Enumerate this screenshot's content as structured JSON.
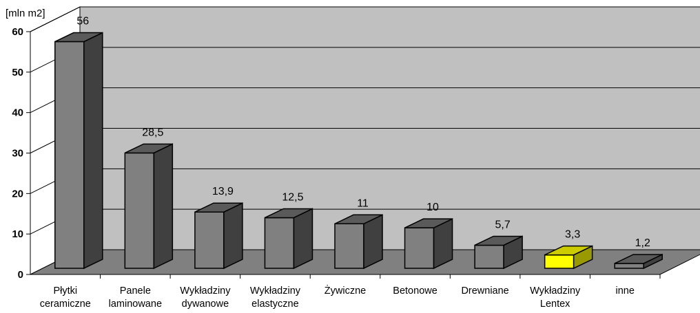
{
  "chart_data": {
    "type": "bar",
    "unit_label": "[mln m2]",
    "categories": [
      [
        "Płytki",
        "ceramiczne"
      ],
      [
        "Panele",
        "laminowane"
      ],
      [
        "Wykładziny",
        "dywanowe"
      ],
      [
        "Wykładziny",
        "elastyczne"
      ],
      [
        "Żywiczne"
      ],
      [
        "Betonowe"
      ],
      [
        "Drewniane"
      ],
      [
        "Wykładziny",
        "Lentex"
      ],
      [
        "inne"
      ]
    ],
    "values": [
      56,
      28.5,
      13.9,
      12.5,
      11,
      10,
      5.7,
      3.3,
      1.2
    ],
    "value_labels": [
      "56",
      "28,5",
      "13,9",
      "12,5",
      "11",
      "10",
      "5,7",
      "3,3",
      "1,2"
    ],
    "ylim": [
      0,
      60
    ],
    "yticks": [
      0,
      10,
      20,
      30,
      40,
      50,
      60
    ],
    "grid": true,
    "colors": {
      "bar_front": "#808080",
      "bar_top": "#5a5a5a",
      "bar_side": "#404040",
      "highlight_front": "#ffff00",
      "highlight_top": "#cccc00",
      "highlight_side": "#999900",
      "back_wall": "#c0c0c0",
      "floor": "#808080"
    },
    "highlight_index": 7
  }
}
